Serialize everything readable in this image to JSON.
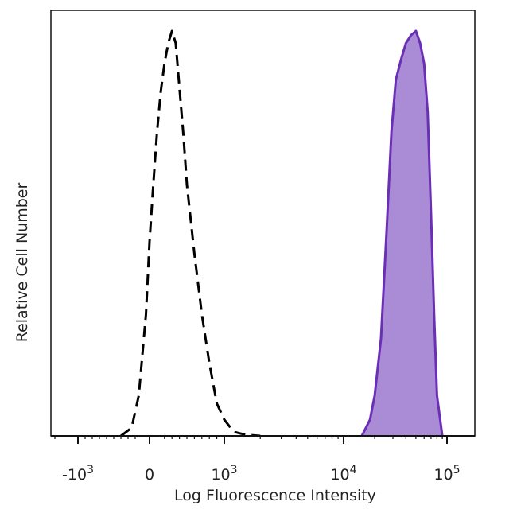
{
  "chart_data": {
    "type": "area",
    "xlabel": "Log Fluorescence Intensity",
    "ylabel": "Relative Cell Number",
    "x_scale": "biexponential",
    "grid": false,
    "legend": "none",
    "x_ticks": [
      {
        "value": -1000,
        "base": "-10",
        "exp": "3"
      },
      {
        "value": 0,
        "base": "0",
        "exp": ""
      },
      {
        "value": 1000,
        "base": "10",
        "exp": "3"
      },
      {
        "value": 10000,
        "base": "10",
        "exp": "4"
      },
      {
        "value": 100000,
        "base": "10",
        "exp": "5"
      }
    ],
    "series": [
      {
        "style": "dashed-outline",
        "color": "#000000",
        "x": [
          -400,
          -250,
          -150,
          -50,
          0,
          50,
          100,
          150,
          200,
          250,
          300,
          350,
          400,
          450,
          500,
          600,
          700,
          800,
          900,
          1000,
          1200,
          1500,
          2000
        ],
        "y": [
          0,
          2,
          10,
          30,
          48,
          62,
          75,
          85,
          92,
          97,
          100,
          97,
          86,
          75,
          62,
          45,
          30,
          18,
          8,
          4,
          1,
          0.3,
          0
        ]
      },
      {
        "style": "filled",
        "color": "#6a2fb5",
        "fill": "#a98bd6",
        "x": [
          15000,
          18000,
          20000,
          23000,
          26000,
          29000,
          32000,
          36000,
          40000,
          45000,
          50000,
          55000,
          60000,
          65000,
          70000,
          75000,
          80000,
          90000
        ],
        "y": [
          0,
          4,
          10,
          24,
          50,
          75,
          88,
          93,
          97,
          99,
          100,
          97,
          92,
          80,
          55,
          30,
          10,
          0
        ]
      }
    ]
  }
}
